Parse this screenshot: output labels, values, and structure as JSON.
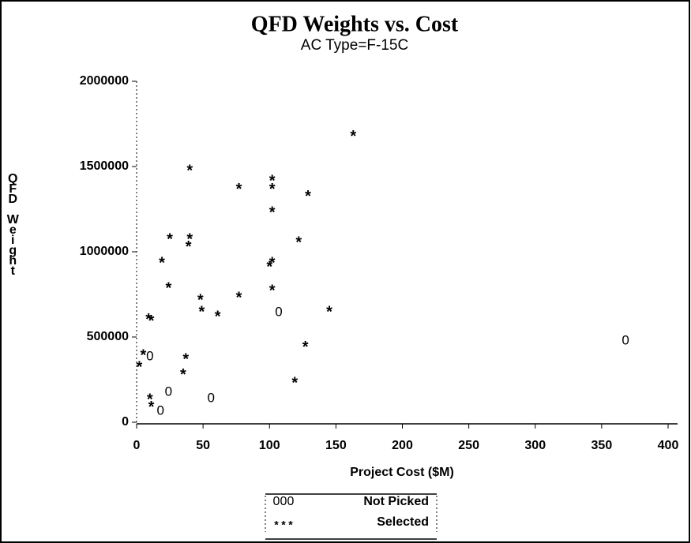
{
  "chart_data": {
    "type": "scatter",
    "title": "QFD Weights vs. Cost",
    "subtitle": "AC Type=F-15C",
    "x_label": "Project Cost ($M)",
    "y_label": "QFD Weight",
    "xlim": [
      0,
      400
    ],
    "xticks": [
      0,
      50,
      100,
      150,
      200,
      250,
      300,
      350,
      400
    ],
    "ylim": [
      0,
      2000000
    ],
    "yticks": [
      0,
      500000,
      1000000,
      1500000,
      2000000
    ],
    "grid": false,
    "series": [
      {
        "name": "Not Picked",
        "marker": "0",
        "color": "#000000",
        "x": [
          10,
          24,
          18,
          56,
          107,
          368
        ],
        "y": [
          384000,
          176000,
          65000,
          139000,
          644000,
          477000
        ]
      },
      {
        "name": "Selected",
        "marker": "*",
        "color": "#000000",
        "x": [
          163,
          40,
          77,
          102,
          102,
          129,
          102,
          25,
          40,
          39,
          19,
          102,
          100,
          122,
          24,
          102,
          48,
          77,
          49,
          61,
          145,
          9,
          11,
          5,
          2,
          37,
          127,
          35,
          119,
          10,
          11
        ],
        "y": [
          1690000,
          1490000,
          1380000,
          1430000,
          1380000,
          1340000,
          1245000,
          1088000,
          1088000,
          1042000,
          949000,
          949000,
          926000,
          1069000,
          801000,
          787000,
          731000,
          745000,
          662000,
          634000,
          662000,
          616000,
          607000,
          407000,
          338000,
          384000,
          454000,
          292000,
          245000,
          148000,
          102000
        ]
      }
    ]
  }
}
